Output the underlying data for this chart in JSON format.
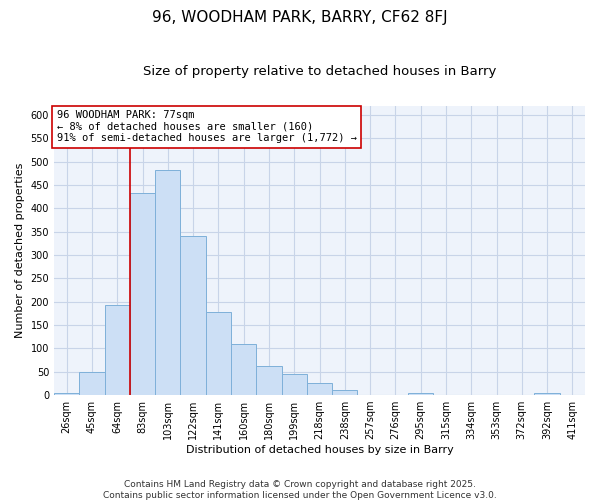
{
  "title": "96, WOODHAM PARK, BARRY, CF62 8FJ",
  "subtitle": "Size of property relative to detached houses in Barry",
  "xlabel": "Distribution of detached houses by size in Barry",
  "ylabel": "Number of detached properties",
  "bar_labels": [
    "26sqm",
    "45sqm",
    "64sqm",
    "83sqm",
    "103sqm",
    "122sqm",
    "141sqm",
    "160sqm",
    "180sqm",
    "199sqm",
    "218sqm",
    "238sqm",
    "257sqm",
    "276sqm",
    "295sqm",
    "315sqm",
    "334sqm",
    "353sqm",
    "372sqm",
    "392sqm",
    "411sqm"
  ],
  "bar_values": [
    5,
    50,
    192,
    432,
    483,
    340,
    178,
    110,
    62,
    45,
    25,
    10,
    0,
    0,
    5,
    0,
    0,
    0,
    0,
    5,
    0
  ],
  "bar_color": "#ccdff5",
  "bar_edge_color": "#7eb0d9",
  "vline_x": 2.5,
  "vline_color": "#cc0000",
  "annotation_text": "96 WOODHAM PARK: 77sqm\n← 8% of detached houses are smaller (160)\n91% of semi-detached houses are larger (1,772) →",
  "annotation_box_color": "#ffffff",
  "annotation_box_edge": "#cc0000",
  "ylim": [
    0,
    620
  ],
  "yticks": [
    0,
    50,
    100,
    150,
    200,
    250,
    300,
    350,
    400,
    450,
    500,
    550,
    600
  ],
  "footnote": "Contains HM Land Registry data © Crown copyright and database right 2025.\nContains public sector information licensed under the Open Government Licence v3.0.",
  "bg_color": "#ffffff",
  "grid_color": "#c8d4e8",
  "title_fontsize": 11,
  "subtitle_fontsize": 9.5,
  "axis_label_fontsize": 8,
  "tick_fontsize": 7,
  "annotation_fontsize": 7.5,
  "footnote_fontsize": 6.5
}
